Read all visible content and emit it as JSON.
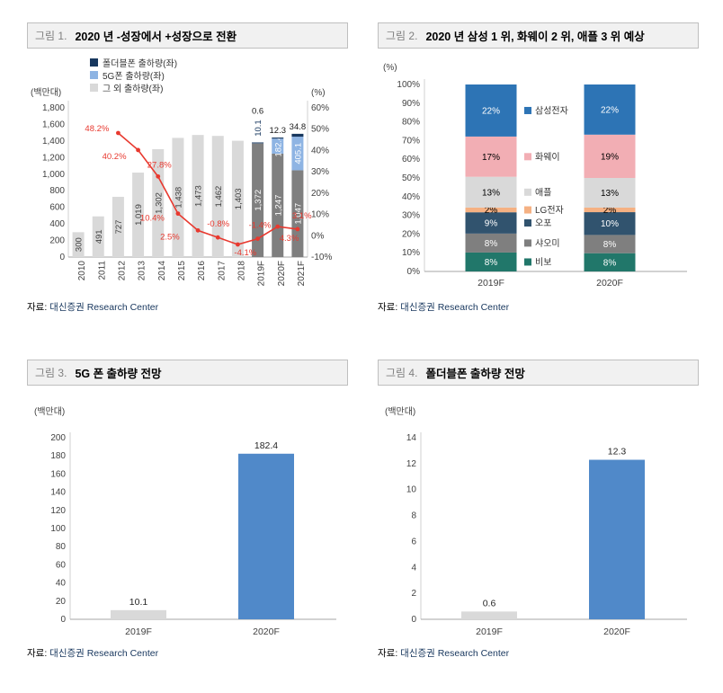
{
  "source_note": {
    "prefix": "자료:",
    "text": "대신증권 Research Center"
  },
  "figures": [
    {
      "tag": "그림 1.",
      "title": "2020 년 -성장에서 +성장으로 전환"
    },
    {
      "tag": "그림 2.",
      "title": "2020 년 삼성 1 위, 화웨이 2 위, 애플 3 위 예상"
    },
    {
      "tag": "그림 3.",
      "title": "5G 폰 출하량 전망"
    },
    {
      "tag": "그림 4.",
      "title": "폴더블폰 출하량 전망"
    }
  ],
  "chart_data": [
    {
      "type": "bar",
      "subtype": "stacked-bar-with-line",
      "categories": [
        "2010",
        "2011",
        "2012",
        "2013",
        "2014",
        "2015",
        "2016",
        "2017",
        "2018",
        "2019F",
        "2020F",
        "2021F"
      ],
      "forecast_start_index": 9,
      "series": [
        {
          "name": "그 외 출하량(좌)",
          "color_hist": "#d9d9d9",
          "color_forecast": "#7f7f7f",
          "values": [
            300,
            491,
            727,
            1019,
            1302,
            1438,
            1473,
            1462,
            1403,
            1372,
            1247,
            1047
          ]
        },
        {
          "name": "5G폰 출하량(좌)",
          "color": "#8eb4e3",
          "values": [
            0,
            0,
            0,
            0,
            0,
            0,
            0,
            0,
            0,
            10.1,
            182.4,
            405.1
          ]
        },
        {
          "name": "폴더블폰 출하량(좌)",
          "color": "#17375e",
          "values": [
            0,
            0,
            0,
            0,
            0,
            0,
            0,
            0,
            0,
            0.6,
            12.3,
            34.8
          ]
        }
      ],
      "line_series": {
        "color": "#e8392f",
        "values": [
          null,
          null,
          48.2,
          40.2,
          27.8,
          10.4,
          2.5,
          -0.8,
          -4.1,
          -1.4,
          4.3,
          3.1
        ],
        "labels": [
          "",
          "",
          "48.2%",
          "40.2%",
          "27.8%",
          "10.4%",
          "2.5%",
          "-0.8%",
          "-4.1%",
          "-1.4%",
          "4.3%",
          "3.1%"
        ]
      },
      "left_axis": {
        "label": "(백만대)",
        "min": 0,
        "max": 1800,
        "step": 200
      },
      "right_axis": {
        "label": "(%)",
        "min": -10,
        "max": 60,
        "step": 10
      }
    },
    {
      "type": "bar",
      "subtype": "stacked-100",
      "categories": [
        "2019F",
        "2020F"
      ],
      "axis": {
        "label": "(%)",
        "min": 0,
        "max": 100,
        "step": 10
      },
      "series": [
        {
          "name": "비보",
          "color": "#21776a",
          "label_color": "#ffffff",
          "values": [
            8,
            8
          ]
        },
        {
          "name": "샤오미",
          "color": "#7f7f7f",
          "label_color": "#ffffff",
          "values": [
            8,
            8
          ]
        },
        {
          "name": "오포",
          "color": "#31536e",
          "label_color": "#ffffff",
          "values": [
            9,
            10
          ]
        },
        {
          "name": "LG전자",
          "color": "#f5b183",
          "label_color": "#000000",
          "values": [
            2,
            2
          ]
        },
        {
          "name": "애플",
          "color": "#d9d9d9",
          "label_color": "#000000",
          "values": [
            13,
            13
          ]
        },
        {
          "name": "화웨이",
          "color": "#f2aeb4",
          "label_color": "#000000",
          "values": [
            17,
            19
          ]
        },
        {
          "name": "삼성전자",
          "color": "#2d74b5",
          "label_color": "#ffffff",
          "values": [
            22,
            22
          ]
        }
      ]
    },
    {
      "type": "bar",
      "categories": [
        "2019F",
        "2020F"
      ],
      "values": [
        10.1,
        182.4
      ],
      "bar_colors": [
        "#d9d9d9",
        "#5089c9"
      ],
      "axis": {
        "label": "(백만대)",
        "min": 0,
        "max": 200,
        "step": 20
      }
    },
    {
      "type": "bar",
      "categories": [
        "2019F",
        "2020F"
      ],
      "values": [
        0.6,
        12.3
      ],
      "bar_colors": [
        "#d9d9d9",
        "#5089c9"
      ],
      "axis": {
        "label": "(백만대)",
        "min": 0,
        "max": 14,
        "step": 2
      }
    }
  ]
}
